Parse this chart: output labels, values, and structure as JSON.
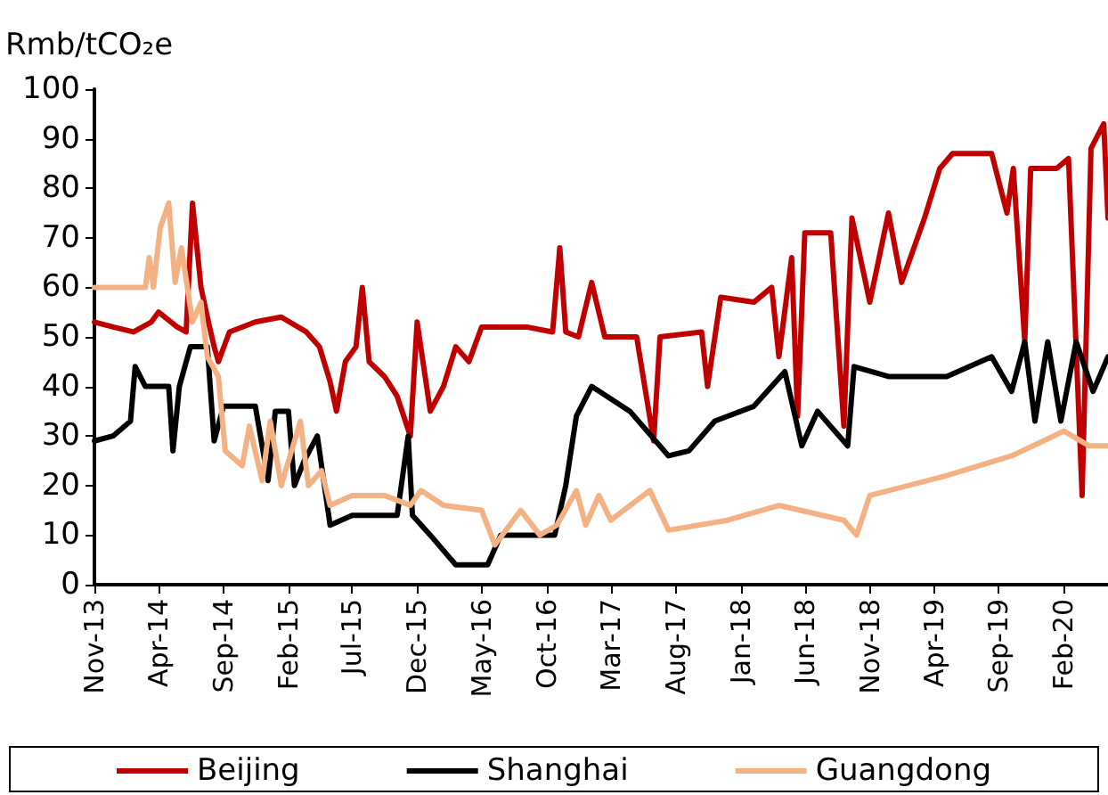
{
  "chart_data": {
    "type": "line",
    "ylabel": "Rmb/tCO₂e",
    "xlim": [
      "2013-11-01",
      "2020-05-15"
    ],
    "ylim": [
      0,
      100
    ],
    "yticks": [
      0,
      10,
      20,
      30,
      40,
      50,
      60,
      70,
      80,
      90,
      100
    ],
    "xticks": [
      {
        "value": "2013-11-01",
        "label": "Nov-13"
      },
      {
        "value": "2014-04-01",
        "label": "Apr-14"
      },
      {
        "value": "2014-09-01",
        "label": "Sep-14"
      },
      {
        "value": "2015-02-01",
        "label": "Feb-15"
      },
      {
        "value": "2015-07-01",
        "label": "Jul-15"
      },
      {
        "value": "2015-12-01",
        "label": "Dec-15"
      },
      {
        "value": "2016-05-01",
        "label": "May-16"
      },
      {
        "value": "2016-10-01",
        "label": "Oct-16"
      },
      {
        "value": "2017-03-01",
        "label": "Mar-17"
      },
      {
        "value": "2017-08-01",
        "label": "Aug-17"
      },
      {
        "value": "2018-01-01",
        "label": "Jan-18"
      },
      {
        "value": "2018-06-01",
        "label": "Jun-18"
      },
      {
        "value": "2018-11-01",
        "label": "Nov-18"
      },
      {
        "value": "2019-04-01",
        "label": "Apr-19"
      },
      {
        "value": "2019-09-01",
        "label": "Sep-19"
      },
      {
        "value": "2020-02-01",
        "label": "Feb-20"
      }
    ],
    "grid": false,
    "legend": "bottom",
    "marker": "none",
    "line_style": "solid",
    "series": [
      {
        "name": "Beijing",
        "color": "#c00000",
        "x": [
          "2013-11-01",
          "2013-12-15",
          "2014-02-01",
          "2014-03-15",
          "2014-04-01",
          "2014-05-15",
          "2014-06-05",
          "2014-06-20",
          "2014-07-10",
          "2014-07-25",
          "2014-08-10",
          "2014-08-20",
          "2014-09-15",
          "2014-11-15",
          "2015-01-15",
          "2015-03-15",
          "2015-04-15",
          "2015-05-10",
          "2015-05-25",
          "2015-06-15",
          "2015-07-10",
          "2015-07-25",
          "2015-08-10",
          "2015-09-15",
          "2015-10-15",
          "2015-11-15",
          "2015-12-01",
          "2016-01-01",
          "2016-02-01",
          "2016-03-01",
          "2016-04-01",
          "2016-05-01",
          "2016-06-15",
          "2016-08-15",
          "2016-10-15",
          "2016-11-01",
          "2016-11-15",
          "2016-12-15",
          "2017-01-15",
          "2017-02-15",
          "2017-05-01",
          "2017-06-10",
          "2017-06-25",
          "2017-10-01",
          "2017-10-15",
          "2017-11-15",
          "2018-02-01",
          "2018-03-15",
          "2018-04-01",
          "2018-05-01",
          "2018-05-15",
          "2018-06-01",
          "2018-08-01",
          "2018-09-01",
          "2018-09-20",
          "2018-11-01",
          "2018-12-15",
          "2019-01-15",
          "2019-03-10",
          "2019-04-15",
          "2019-05-15",
          "2019-08-15",
          "2019-09-20",
          "2019-10-05",
          "2019-11-01",
          "2019-11-15",
          "2020-01-15",
          "2020-02-12",
          "2020-03-15",
          "2020-04-05",
          "2020-05-05",
          "2020-05-15"
        ],
        "values": [
          53,
          52,
          51,
          53,
          55,
          52,
          51,
          77,
          60,
          54,
          48,
          45,
          51,
          53,
          54,
          51,
          48,
          41,
          35,
          45,
          48,
          60,
          45,
          42,
          38,
          30,
          53,
          35,
          40,
          48,
          45,
          52,
          52,
          52,
          51,
          68,
          51,
          50,
          61,
          50,
          50,
          29,
          50,
          51,
          40,
          58,
          57,
          60,
          46,
          66,
          34,
          71,
          71,
          32,
          74,
          57,
          75,
          61,
          74,
          84,
          87,
          87,
          75,
          84,
          49,
          84,
          84,
          86,
          18,
          88,
          93,
          74
        ]
      },
      {
        "name": "Shanghai",
        "color": "#000000",
        "x": [
          "2013-11-01",
          "2013-12-15",
          "2014-01-25",
          "2014-02-05",
          "2014-03-01",
          "2014-04-25",
          "2014-05-05",
          "2014-05-20",
          "2014-06-15",
          "2014-07-25",
          "2014-08-10",
          "2014-09-01",
          "2014-11-15",
          "2014-12-15",
          "2015-01-01",
          "2015-02-01",
          "2015-02-15",
          "2015-03-10",
          "2015-04-10",
          "2015-05-10",
          "2015-07-01",
          "2015-10-15",
          "2015-11-10",
          "2015-11-20",
          "2016-01-01",
          "2016-03-01",
          "2016-05-15",
          "2016-06-15",
          "2016-10-20",
          "2016-11-15",
          "2016-12-10",
          "2017-01-15",
          "2017-04-15",
          "2017-07-15",
          "2017-09-01",
          "2017-11-01",
          "2018-02-01",
          "2018-03-15",
          "2018-04-15",
          "2018-05-25",
          "2018-07-01",
          "2018-09-10",
          "2018-09-25",
          "2018-12-15",
          "2019-05-01",
          "2019-08-15",
          "2019-10-01",
          "2019-11-01",
          "2019-11-25",
          "2019-12-25",
          "2020-01-25",
          "2020-03-01",
          "2020-04-10",
          "2020-05-15"
        ],
        "values": [
          29,
          30,
          33,
          44,
          40,
          40,
          27,
          40,
          48,
          48,
          29,
          36,
          36,
          21,
          35,
          35,
          20,
          25,
          30,
          12,
          14,
          14,
          30,
          14,
          10,
          4,
          4,
          10,
          10,
          20,
          34,
          40,
          35,
          26,
          27,
          33,
          36,
          40,
          43,
          28,
          35,
          28,
          44,
          42,
          42,
          46,
          39,
          49,
          33,
          49,
          33,
          49,
          39,
          46
        ]
      },
      {
        "name": "Guangdong",
        "color": "#f4b183",
        "x": [
          "2013-11-01",
          "2014-03-01",
          "2014-03-10",
          "2014-03-20",
          "2014-04-05",
          "2014-04-25",
          "2014-05-10",
          "2014-05-25",
          "2014-06-20",
          "2014-07-10",
          "2014-07-25",
          "2014-08-20",
          "2014-09-05",
          "2014-10-15",
          "2014-11-01",
          "2014-12-01",
          "2014-12-20",
          "2015-01-15",
          "2015-03-01",
          "2015-03-20",
          "2015-04-20",
          "2015-05-10",
          "2015-07-01",
          "2015-09-15",
          "2015-11-15",
          "2015-12-10",
          "2016-02-01",
          "2016-05-01",
          "2016-06-01",
          "2016-08-01",
          "2016-09-15",
          "2016-10-25",
          "2016-12-10",
          "2017-01-01",
          "2017-02-01",
          "2017-03-01",
          "2017-06-01",
          "2017-07-15",
          "2017-12-01",
          "2018-04-01",
          "2018-09-01",
          "2018-10-01",
          "2018-11-01",
          "2019-05-01",
          "2019-10-01",
          "2019-12-15",
          "2020-02-01",
          "2020-04-01",
          "2020-05-15"
        ],
        "values": [
          60,
          60,
          66,
          60,
          72,
          77,
          61,
          68,
          53,
          57,
          46,
          42,
          27,
          24,
          32,
          21,
          33,
          20,
          33,
          20,
          23,
          16,
          18,
          18,
          16,
          19,
          16,
          15,
          8,
          15,
          10,
          12,
          19,
          12,
          18,
          13,
          19,
          11,
          13,
          16,
          13,
          10,
          18,
          22,
          26,
          29,
          31,
          28,
          28
        ]
      }
    ]
  }
}
